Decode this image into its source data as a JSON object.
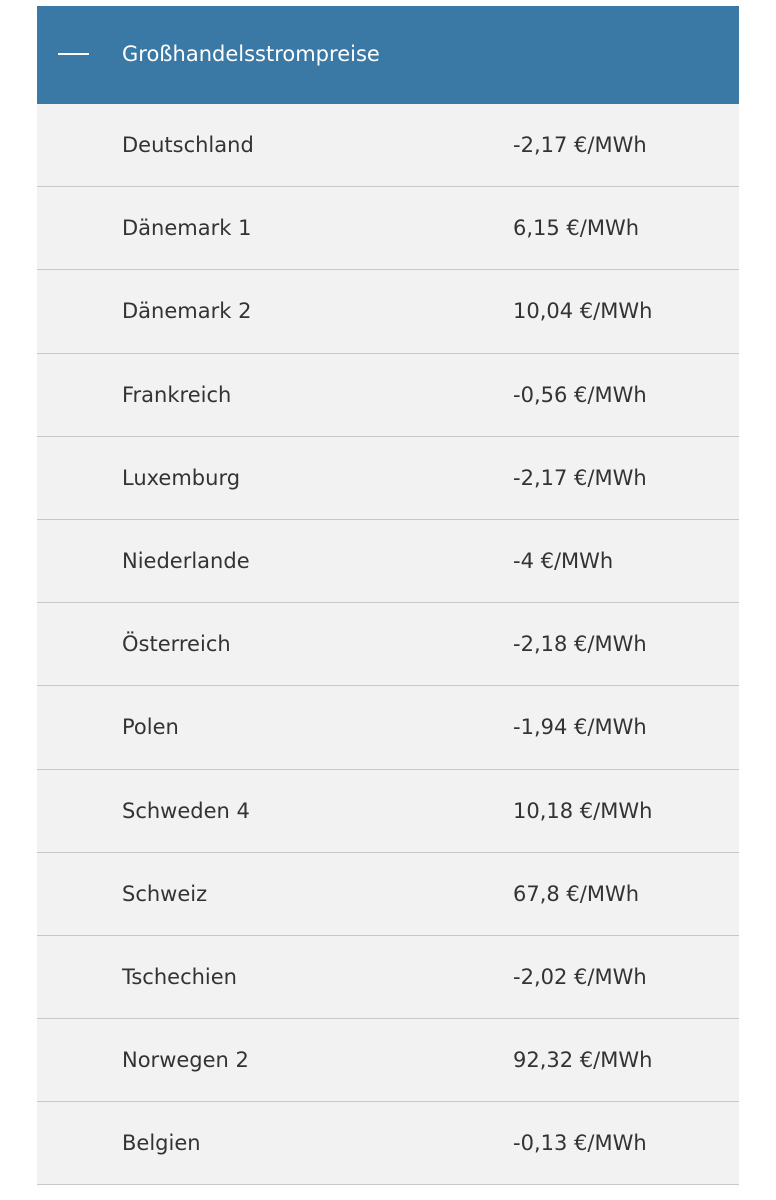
{
  "header": {
    "title": "Großhandelsstrompreise"
  },
  "table": {
    "rows": [
      [
        "Deutschland",
        "-2,17 €/MWh"
      ],
      [
        "Dänemark 1",
        "6,15 €/MWh"
      ],
      [
        "Dänemark 2",
        "10,04 €/MWh"
      ],
      [
        "Frankreich",
        "-0,56 €/MWh"
      ],
      [
        "Luxemburg",
        "-2,17 €/MWh"
      ],
      [
        "Niederlande",
        "-4 €/MWh"
      ],
      [
        "Österreich",
        "-2,18 €/MWh"
      ],
      [
        "Polen",
        "-1,94 €/MWh"
      ],
      [
        "Schweden 4",
        "10,18 €/MWh"
      ],
      [
        "Schweiz",
        "67,8 €/MWh"
      ],
      [
        "Tschechien",
        "-2,02 €/MWh"
      ],
      [
        "Norwegen 2",
        "92,32 €/MWh"
      ],
      [
        "Belgien",
        "-0,13 €/MWh"
      ]
    ]
  }
}
